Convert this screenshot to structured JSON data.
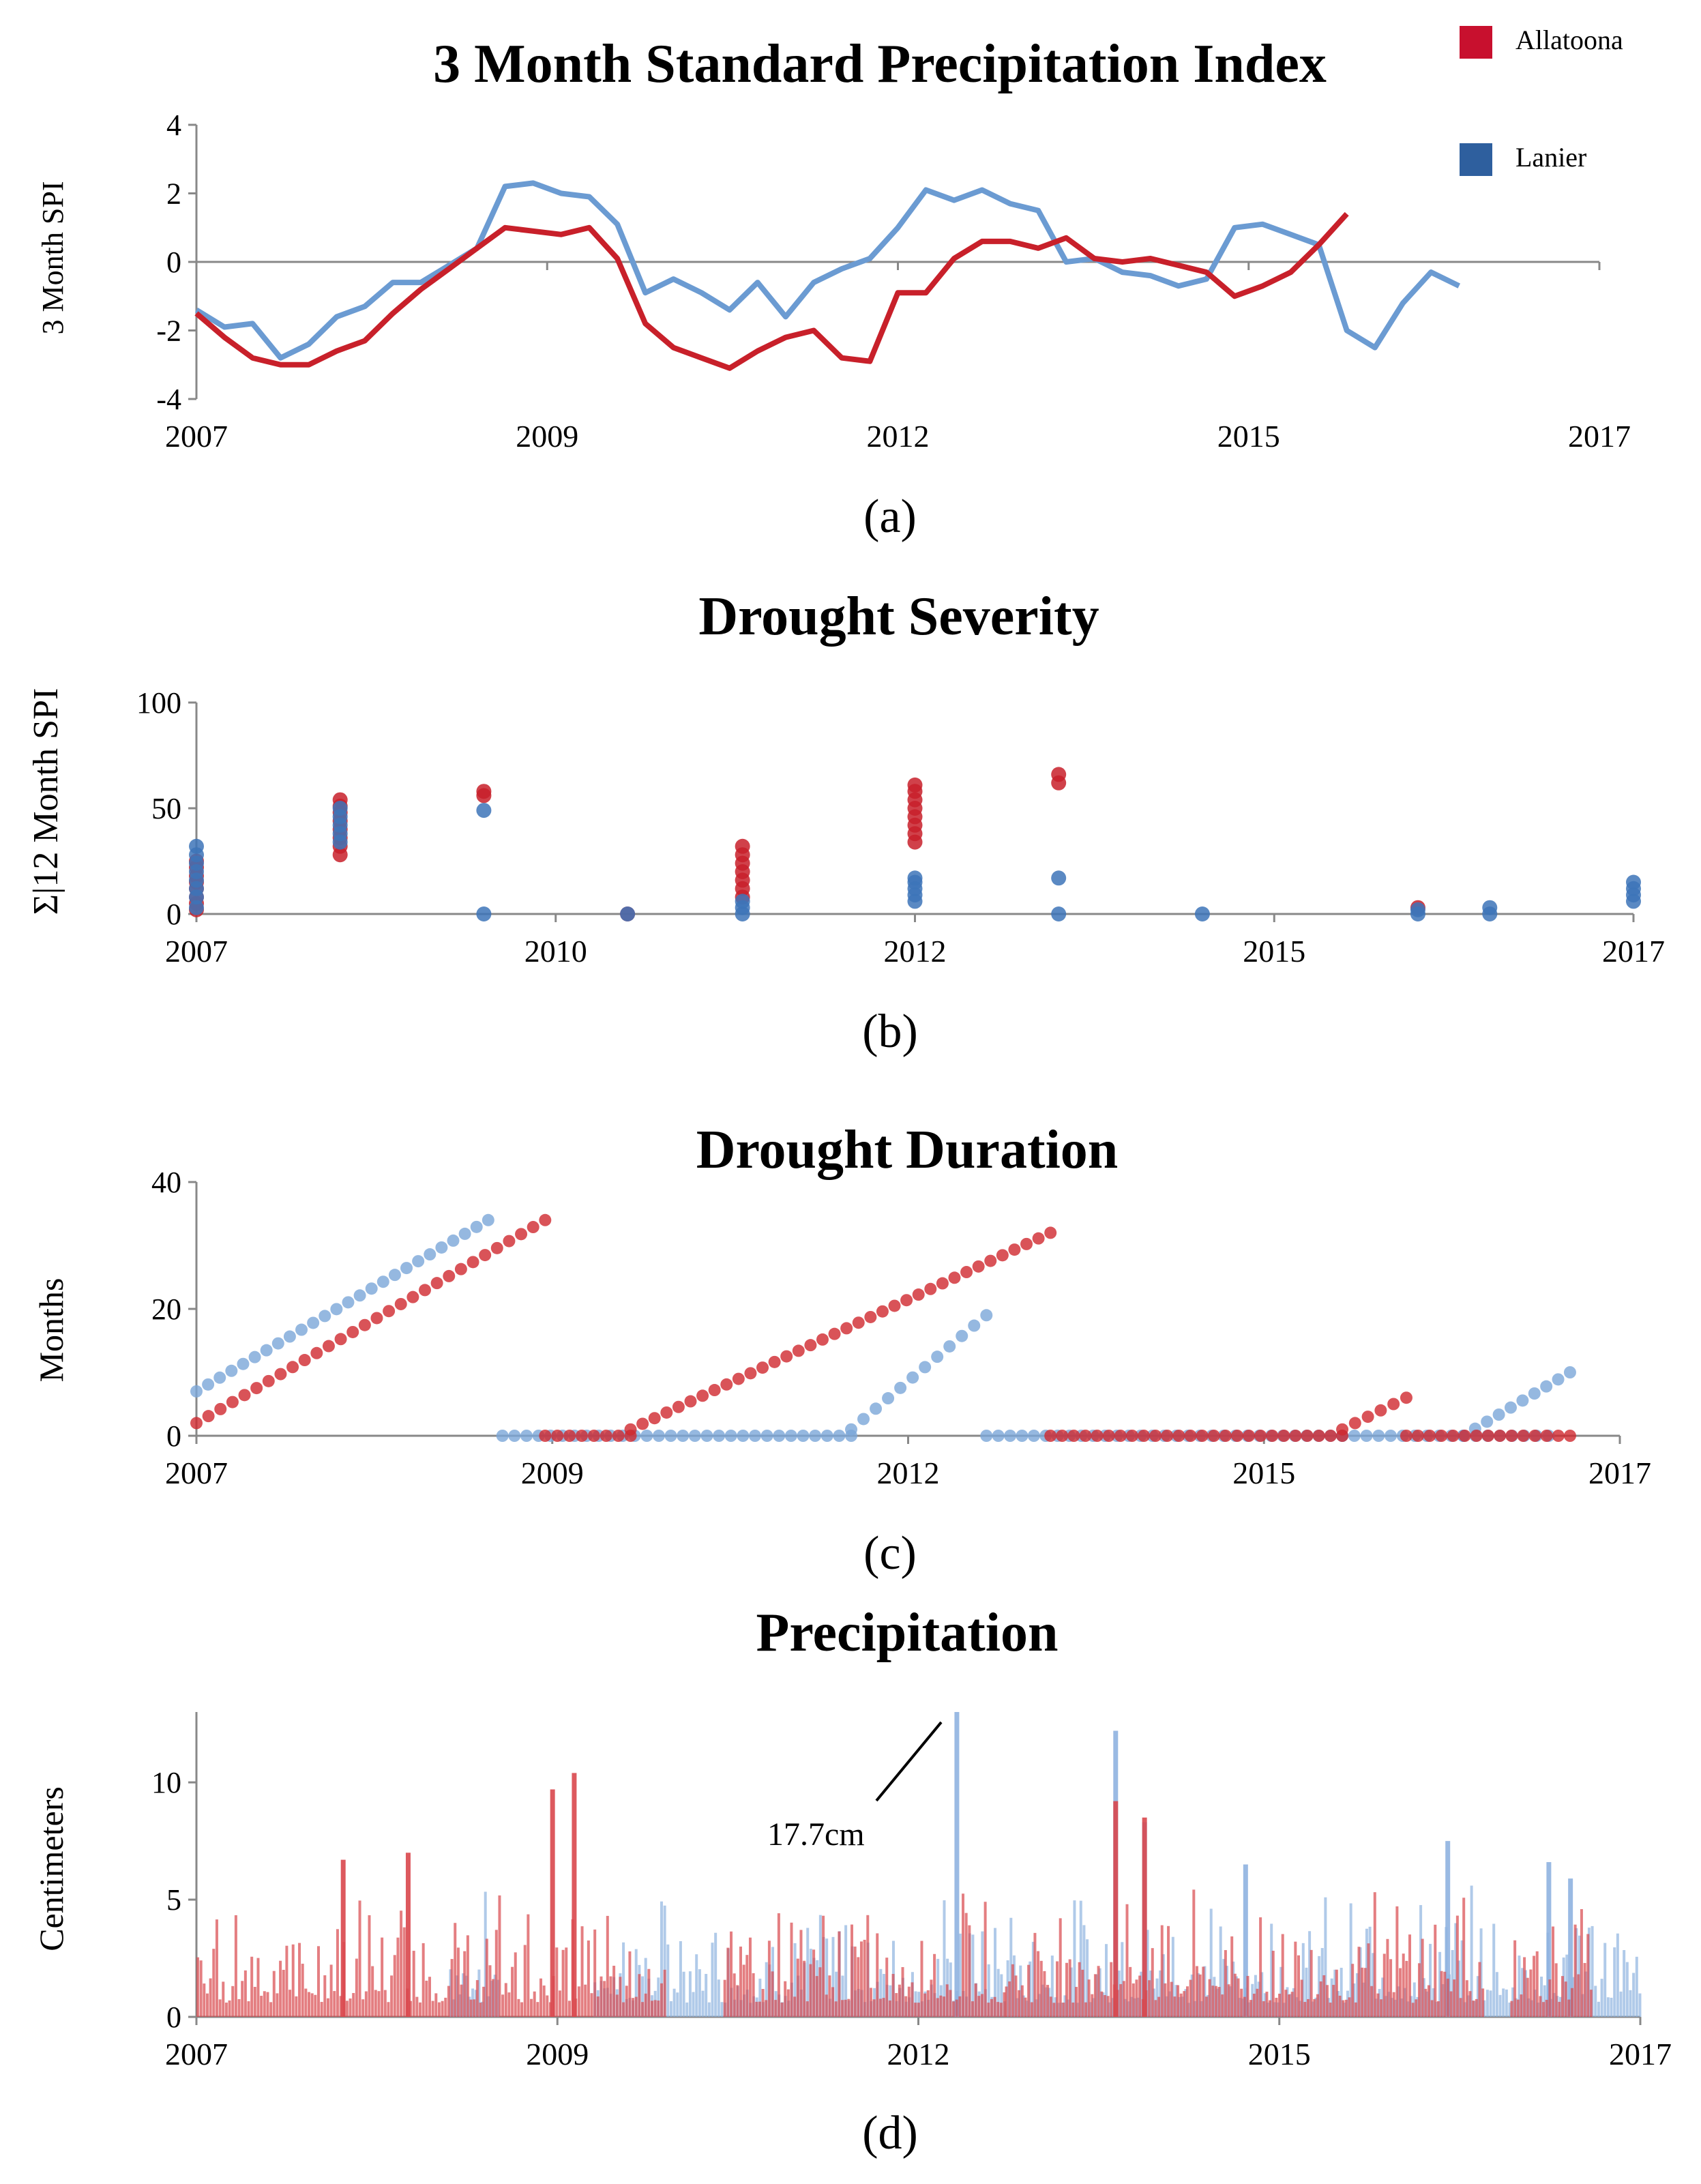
{
  "legend": {
    "items": [
      {
        "label": "Allatoona",
        "color": "#c8102e"
      },
      {
        "label": "Lanier",
        "color": "#2e5f9e"
      }
    ]
  },
  "colors": {
    "allatoona": "#c8202a",
    "lanier": "#6b9bd2",
    "axis": "#888888"
  },
  "chart_data": [
    {
      "panel": "a",
      "type": "line",
      "title": "3 Month Standard Precipitation Index",
      "ylabel": "3 Month SPI",
      "xlabel": "",
      "caption": "(a)",
      "xlim": [
        2007,
        2017
      ],
      "ylim": [
        -4,
        4
      ],
      "yticks": [
        4,
        2,
        0,
        -2,
        -4
      ],
      "xticks": [
        {
          "v": 2007,
          "label": "2007"
        },
        {
          "v": 2009.5,
          "label": "2009"
        },
        {
          "v": 2012,
          "label": "2012"
        },
        {
          "v": 2014.5,
          "label": "2015"
        },
        {
          "v": 2017,
          "label": "2017"
        }
      ],
      "series": [
        {
          "name": "Allatoona",
          "x": [
            2007.0,
            2007.2,
            2007.4,
            2007.6,
            2007.8,
            2008.0,
            2008.2,
            2008.4,
            2008.6,
            2008.8,
            2009.0,
            2009.2,
            2009.4,
            2009.6,
            2009.8,
            2010.0,
            2010.2,
            2010.4,
            2010.6,
            2010.8,
            2011.0,
            2011.2,
            2011.4,
            2011.6,
            2011.8,
            2012.0,
            2012.2,
            2012.4,
            2012.6,
            2012.8,
            2013.0,
            2013.2,
            2013.4,
            2013.6,
            2013.8,
            2014.0,
            2014.2,
            2014.4,
            2014.6,
            2014.8,
            2015.0,
            2015.2,
            2015.4
          ],
          "y": [
            -1.5,
            -2.2,
            -2.8,
            -3.0,
            -3.0,
            -2.6,
            -2.3,
            -1.5,
            -0.8,
            -0.2,
            0.4,
            1.0,
            0.9,
            0.8,
            1.0,
            0.1,
            -1.8,
            -2.5,
            -2.8,
            -3.1,
            -2.6,
            -2.2,
            -2.0,
            -2.8,
            -2.9,
            -0.9,
            -0.9,
            0.1,
            0.6,
            0.6,
            0.4,
            0.7,
            0.1,
            0.0,
            0.1,
            -0.1,
            -0.3,
            -1.0,
            -0.7,
            -0.3,
            0.5,
            1.4,
            null
          ]
        },
        {
          "name": "Lanier",
          "x": [
            2007.0,
            2007.2,
            2007.4,
            2007.6,
            2007.8,
            2008.0,
            2008.2,
            2008.4,
            2008.6,
            2008.8,
            2009.0,
            2009.2,
            2009.4,
            2009.6,
            2009.8,
            2010.0,
            2010.2,
            2010.4,
            2010.6,
            2010.8,
            2011.0,
            2011.2,
            2011.4,
            2011.6,
            2011.8,
            2012.0,
            2012.2,
            2012.4,
            2012.6,
            2012.8,
            2013.0,
            2013.2,
            2013.4,
            2013.6,
            2013.8,
            2014.0,
            2014.2,
            2014.4,
            2014.6,
            2014.8,
            2015.0,
            2015.2,
            2015.4,
            2015.6,
            2015.8,
            2016.0,
            2016.2,
            2016.4,
            2016.6
          ],
          "y": [
            -1.4,
            -1.9,
            -1.8,
            -2.8,
            -2.4,
            -1.6,
            -1.3,
            -0.6,
            -0.6,
            -0.1,
            0.4,
            2.2,
            2.3,
            2.0,
            1.9,
            1.1,
            -0.9,
            -0.5,
            -0.9,
            -1.4,
            -0.6,
            -1.6,
            -0.6,
            -0.2,
            0.1,
            1.0,
            2.1,
            1.8,
            2.1,
            1.7,
            1.5,
            0.0,
            0.1,
            -0.3,
            -0.4,
            -0.7,
            -0.5,
            1.0,
            1.1,
            0.8,
            0.5,
            -2.0,
            -2.5,
            -1.2,
            -0.3,
            -0.7,
            null,
            null,
            null
          ]
        }
      ]
    },
    {
      "panel": "b",
      "type": "scatter",
      "title": "Drought Severity",
      "ylabel": "Σ|12 Month SPI",
      "xlabel": "",
      "caption": "(b)",
      "xlim": [
        2007,
        2017
      ],
      "ylim": [
        0,
        100
      ],
      "yticks": [
        100,
        50,
        0
      ],
      "xticks": [
        {
          "v": 2007,
          "label": "2007"
        },
        {
          "v": 2009.5,
          "label": "2010"
        },
        {
          "v": 2012,
          "label": "2012"
        },
        {
          "v": 2014.5,
          "label": "2015"
        },
        {
          "v": 2017,
          "label": "2017"
        }
      ],
      "series": [
        {
          "name": "Allatoona",
          "points": [
            [
              2007,
              2
            ],
            [
              2007,
              5
            ],
            [
              2007,
              8
            ],
            [
              2007,
              12
            ],
            [
              2007,
              15
            ],
            [
              2007,
              18
            ],
            [
              2007,
              22
            ],
            [
              2007,
              25
            ],
            [
              2008,
              28
            ],
            [
              2008,
              32
            ],
            [
              2008,
              36
            ],
            [
              2008,
              40
            ],
            [
              2008,
              44
            ],
            [
              2008,
              48
            ],
            [
              2008,
              51
            ],
            [
              2008,
              54
            ],
            [
              2009,
              56
            ],
            [
              2009,
              58
            ],
            [
              2010,
              0
            ],
            [
              2010.8,
              8
            ],
            [
              2010.8,
              12
            ],
            [
              2010.8,
              16
            ],
            [
              2010.8,
              20
            ],
            [
              2010.8,
              24
            ],
            [
              2010.8,
              28
            ],
            [
              2010.8,
              32
            ],
            [
              2012,
              34
            ],
            [
              2012,
              38
            ],
            [
              2012,
              42
            ],
            [
              2012,
              46
            ],
            [
              2012,
              50
            ],
            [
              2012,
              54
            ],
            [
              2012,
              58
            ],
            [
              2012,
              61
            ],
            [
              2013,
              62
            ],
            [
              2013,
              66
            ],
            [
              2015.5,
              3
            ]
          ]
        },
        {
          "name": "Lanier",
          "points": [
            [
              2007,
              3
            ],
            [
              2007,
              8
            ],
            [
              2007,
              12
            ],
            [
              2007,
              16
            ],
            [
              2007,
              20
            ],
            [
              2007,
              24
            ],
            [
              2007,
              28
            ],
            [
              2007,
              32
            ],
            [
              2008,
              34
            ],
            [
              2008,
              38
            ],
            [
              2008,
              42
            ],
            [
              2008,
              46
            ],
            [
              2008,
              50
            ],
            [
              2009,
              49
            ],
            [
              2009,
              0
            ],
            [
              2010,
              0
            ],
            [
              2010.8,
              0
            ],
            [
              2010.8,
              3
            ],
            [
              2010.8,
              6
            ],
            [
              2012,
              6
            ],
            [
              2012,
              9
            ],
            [
              2012,
              12
            ],
            [
              2012,
              15
            ],
            [
              2012,
              17
            ],
            [
              2013,
              17
            ],
            [
              2013,
              0
            ],
            [
              2014,
              0
            ],
            [
              2015.5,
              0
            ],
            [
              2015.5,
              2
            ],
            [
              2016,
              0
            ],
            [
              2016,
              3
            ],
            [
              2017,
              6
            ],
            [
              2017,
              9
            ],
            [
              2017,
              12
            ],
            [
              2017,
              15
            ]
          ]
        }
      ]
    },
    {
      "panel": "c",
      "type": "scatter",
      "title": "Drought Duration",
      "ylabel": "Months",
      "xlabel": "",
      "caption": "(c)",
      "xlim": [
        2007,
        2017
      ],
      "ylim": [
        0,
        40
      ],
      "yticks": [
        40,
        20,
        0
      ],
      "xticks": [
        {
          "v": 2007,
          "label": "2007"
        },
        {
          "v": 2009.5,
          "label": "2009"
        },
        {
          "v": 2012,
          "label": "2012"
        },
        {
          "v": 2014.5,
          "label": "2015"
        },
        {
          "v": 2017,
          "label": "2017"
        }
      ],
      "series": [
        {
          "name": "Lanier",
          "segments": [
            {
              "start": 2007.0,
              "end": 2009.05,
              "y0": 7,
              "y1": 34
            },
            {
              "start": 2009.15,
              "end": 2011.6,
              "y0": 0,
              "y1": 0
            },
            {
              "start": 2011.6,
              "end": 2012.55,
              "y0": 1,
              "y1": 19
            },
            {
              "start": 2012.55,
              "end": 2015.05,
              "y0": 0,
              "y1": 0
            },
            {
              "start": 2015.05,
              "end": 2015.9,
              "y0": 0,
              "y1": 0
            },
            {
              "start": 2015.9,
              "end": 2016.5,
              "y0": 0,
              "y1": 0
            },
            {
              "start": 2015.9,
              "end": 2016.65,
              "y0": 0,
              "y1": 10
            }
          ]
        },
        {
          "name": "Allatoona",
          "segments": [
            {
              "start": 2007.0,
              "end": 2009.45,
              "y0": 2,
              "y1": 34
            },
            {
              "start": 2009.45,
              "end": 2010.05,
              "y0": 0,
              "y1": 0
            },
            {
              "start": 2010.05,
              "end": 2013.0,
              "y0": 1,
              "y1": 32
            },
            {
              "start": 2013.0,
              "end": 2015.05,
              "y0": 0,
              "y1": 0
            },
            {
              "start": 2015.05,
              "end": 2015.5,
              "y0": 1,
              "y1": 6
            },
            {
              "start": 2015.5,
              "end": 2016.65,
              "y0": 0,
              "y1": 0
            }
          ]
        }
      ]
    },
    {
      "panel": "d",
      "type": "bar",
      "title": "Precipitation",
      "ylabel": "Centimeters",
      "xlabel": "",
      "caption": "(d)",
      "xlim": [
        2007,
        2017
      ],
      "ylim": [
        0,
        13
      ],
      "yticks": [
        10,
        5,
        0
      ],
      "xticks": [
        {
          "v": 2007,
          "label": "2007"
        },
        {
          "v": 2009.5,
          "label": "2009"
        },
        {
          "v": 2012,
          "label": "2012"
        },
        {
          "v": 2014.5,
          "label": "2015"
        },
        {
          "v": 2017,
          "label": "2017"
        }
      ],
      "annotation": {
        "text": "17.7cm",
        "x": 2012.25,
        "value": 17.7
      },
      "series": [
        {
          "name": "Allatoona",
          "ranges": [
            [
              2007.0,
              2010.25
            ],
            [
              2010.65,
              2012.6
            ],
            [
              2012.6,
              2015.9
            ],
            [
              2016.1,
              2016.65
            ]
          ],
          "peaks": [
            [
              2008.0,
              6.7
            ],
            [
              2008.45,
              7.0
            ],
            [
              2009.6,
              10.4
            ],
            [
              2009.45,
              9.7
            ],
            [
              2013.35,
              9.2
            ],
            [
              2013.55,
              8.5
            ]
          ]
        },
        {
          "name": "Lanier",
          "ranges": [
            [
              2008.75,
              2009.1
            ],
            [
              2009.75,
              2017.0
            ]
          ],
          "peaks": [
            [
              2012.25,
              13.0
            ],
            [
              2013.35,
              12.2
            ],
            [
              2013.55,
              8.3
            ],
            [
              2014.25,
              6.5
            ],
            [
              2015.65,
              7.5
            ],
            [
              2016.35,
              6.6
            ],
            [
              2016.5,
              5.9
            ]
          ]
        }
      ]
    }
  ]
}
